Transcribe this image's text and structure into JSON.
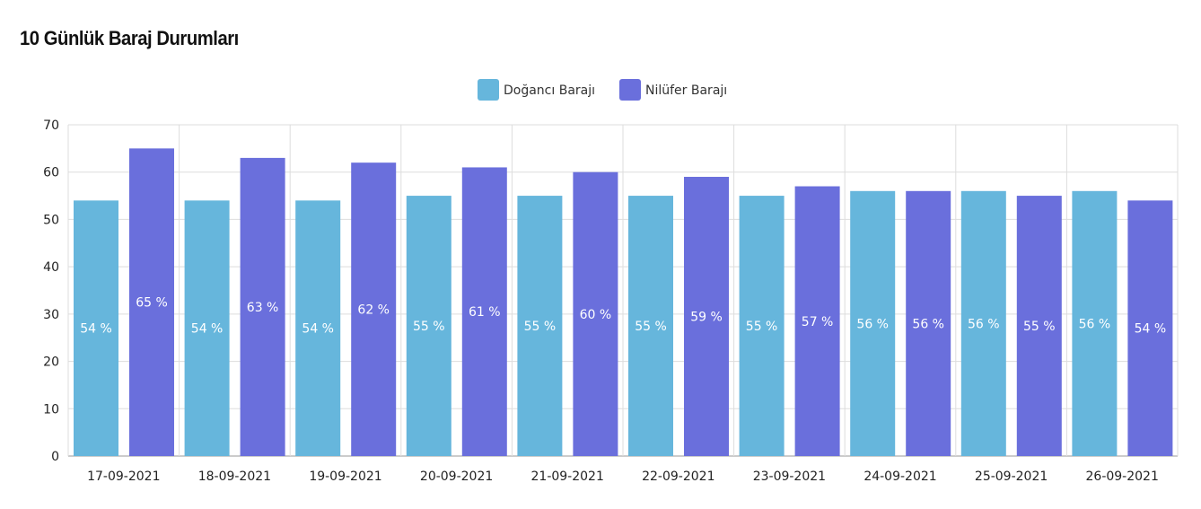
{
  "title": "10 Günlük Baraj Durumları",
  "colors": {
    "dogancı": "#66b6dc",
    "nilufer": "#6a6fdc",
    "grid": "#dddddd",
    "axis": "#999999"
  },
  "chart_data": {
    "type": "bar",
    "title": "10 Günlük Baraj Durumları",
    "xlabel": "",
    "ylabel": "",
    "ylim": [
      0,
      70
    ],
    "yticks": [
      0,
      10,
      20,
      30,
      40,
      50,
      60,
      70
    ],
    "categories": [
      "17-09-2021",
      "18-09-2021",
      "19-09-2021",
      "20-09-2021",
      "21-09-2021",
      "22-09-2021",
      "23-09-2021",
      "24-09-2021",
      "25-09-2021",
      "26-09-2021"
    ],
    "series": [
      {
        "name": "Doğancı Barajı",
        "color": "#66b6dc",
        "values": [
          54,
          54,
          54,
          55,
          55,
          55,
          55,
          56,
          56,
          56
        ],
        "labels": [
          "54 %",
          "54 %",
          "54 %",
          "55 %",
          "55 %",
          "55 %",
          "55 %",
          "56 %",
          "56 %",
          "56 %"
        ]
      },
      {
        "name": "Nilüfer Barajı",
        "color": "#6a6fdc",
        "values": [
          65,
          63,
          62,
          61,
          60,
          59,
          57,
          56,
          55,
          54
        ],
        "labels": [
          "65 %",
          "63 %",
          "62 %",
          "61 %",
          "60 %",
          "59 %",
          "57 %",
          "56 %",
          "55 %",
          "54 %"
        ]
      }
    ],
    "legend_position": "top-center"
  }
}
